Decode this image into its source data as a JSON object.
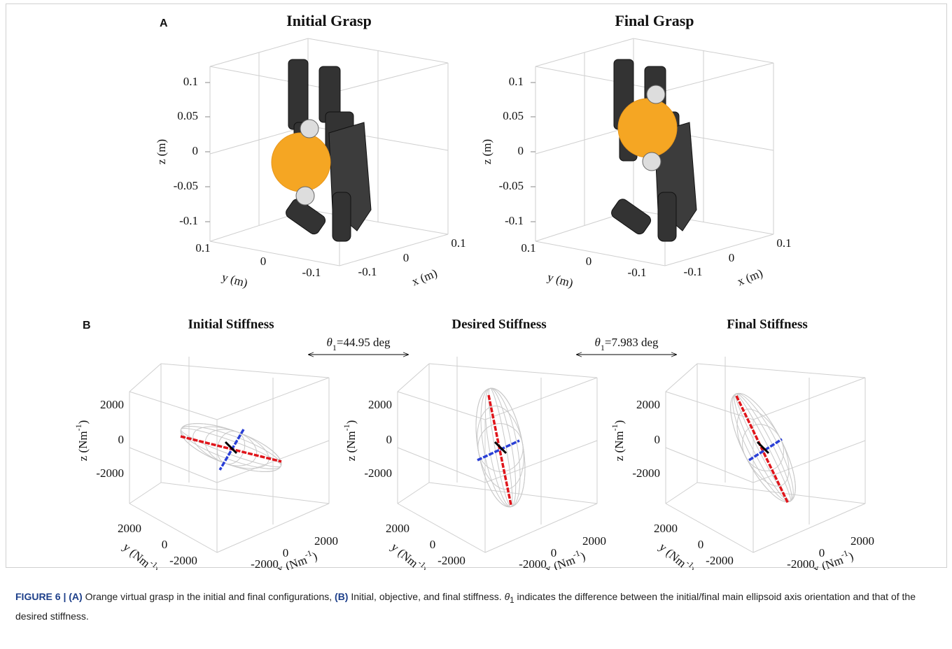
{
  "panel_a": {
    "label": "A",
    "plots": [
      {
        "title": "Initial Grasp",
        "zlabel": "z (m)",
        "ylabel": "y (m)",
        "xlabel": "x (m)",
        "zticks": [
          "0.1",
          "0.05",
          "0",
          "-0.05",
          "-0.1"
        ],
        "yticks": [
          "0.1",
          "0",
          "-0.1"
        ],
        "xticks": [
          "-0.1",
          "0",
          "0.1"
        ]
      },
      {
        "title": "Final Grasp",
        "zlabel": "z (m)",
        "ylabel": "y (m)",
        "xlabel": "x (m)",
        "zticks": [
          "0.1",
          "0.05",
          "0",
          "-0.05",
          "-0.1"
        ],
        "yticks": [
          "0.1",
          "0",
          "-0.1"
        ],
        "xticks": [
          "-0.1",
          "0",
          "0.1"
        ]
      }
    ]
  },
  "panel_b": {
    "label": "B",
    "plots": [
      {
        "title": "Initial Stiffness",
        "zlabel": {
          "base": "z (Nm",
          "exp": "-1",
          "close": ")"
        },
        "ylabel": {
          "base": "y (Nm",
          "exp": "-1",
          "close": ")"
        },
        "xlabel": {
          "base": "x (Nm",
          "exp": "-1",
          "close": ")"
        },
        "zticks": [
          "2000",
          "0",
          "-2000"
        ],
        "yticks": [
          "2000",
          "0",
          "-2000"
        ],
        "xticks": [
          "-2000",
          "0",
          "2000"
        ]
      },
      {
        "title": "Desired Stiffness",
        "zlabel": {
          "base": "z (Nm",
          "exp": "-1",
          "close": ")"
        },
        "ylabel": {
          "base": "y (Nm",
          "exp": "-1",
          "close": ")"
        },
        "xlabel": {
          "base": "x (Nm",
          "exp": "-1",
          "close": ")"
        },
        "zticks": [
          "2000",
          "0",
          "-2000"
        ],
        "yticks": [
          "2000",
          "0",
          "-2000"
        ],
        "xticks": [
          "-2000",
          "0",
          "2000"
        ]
      },
      {
        "title": "Final Stiffness",
        "zlabel": {
          "base": "z (Nm",
          "exp": "-1",
          "close": ")"
        },
        "ylabel": {
          "base": "y (Nm",
          "exp": "-1",
          "close": ")"
        },
        "xlabel": {
          "base": "x (Nm",
          "exp": "-1",
          "close": ")"
        },
        "zticks": [
          "2000",
          "0",
          "-2000"
        ],
        "yticks": [
          "2000",
          "0",
          "-2000"
        ],
        "xticks": [
          "-2000",
          "0",
          "2000"
        ]
      }
    ],
    "angles": [
      {
        "symbol": "θ",
        "sub": "1",
        "text": "=44.95 deg"
      },
      {
        "symbol": "θ",
        "sub": "1",
        "text": "=7.983 deg"
      }
    ]
  },
  "caption": {
    "figure": "FIGURE 6 |",
    "a": "(A)",
    "a_text": " Orange virtual grasp in the initial and final configurations, ",
    "b": "(B)",
    "b_text": " Initial, objective, and final stiffness. ",
    "symbol": "θ",
    "sub": "1",
    "rest": " indicates the difference between the initial/final main ellipsoid axis orientation and that of the desired stiffness."
  }
}
